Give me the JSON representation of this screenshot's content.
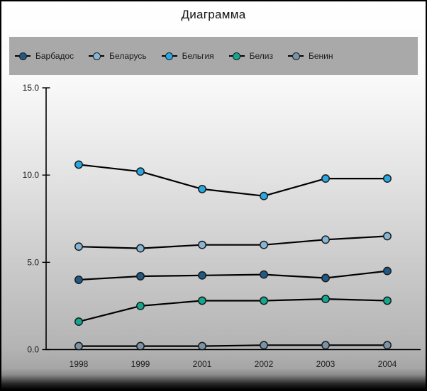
{
  "title": "Диаграмма",
  "legend": {
    "items": [
      {
        "label": "Барбадос",
        "color": "#1f5a87"
      },
      {
        "label": "Беларусь",
        "color": "#85b6d6"
      },
      {
        "label": "Бельгия",
        "color": "#29a9e1"
      },
      {
        "label": "Белиз",
        "color": "#12a88f"
      },
      {
        "label": "Бенин",
        "color": "#7b93a6"
      }
    ]
  },
  "chart_data": {
    "type": "line",
    "title": "Диаграмма",
    "categories": [
      "1998",
      "1999",
      "2001",
      "2002",
      "2003",
      "2004"
    ],
    "series": [
      {
        "name": "Барбадос",
        "color": "#1f5a87",
        "values": [
          4.0,
          4.2,
          4.25,
          4.3,
          4.1,
          4.5
        ]
      },
      {
        "name": "Беларусь",
        "color": "#85b6d6",
        "values": [
          5.9,
          5.8,
          6.0,
          6.0,
          6.3,
          6.5
        ]
      },
      {
        "name": "Бельгия",
        "color": "#29a9e1",
        "values": [
          10.6,
          10.2,
          9.2,
          8.8,
          9.8,
          9.8
        ]
      },
      {
        "name": "Белиз",
        "color": "#12a88f",
        "values": [
          1.6,
          2.5,
          2.8,
          2.8,
          2.9,
          2.8
        ]
      },
      {
        "name": "Бенин",
        "color": "#7b93a6",
        "values": [
          0.2,
          0.2,
          0.2,
          0.25,
          0.25,
          0.25
        ]
      }
    ],
    "ylim": [
      0,
      15
    ],
    "yticks": [
      0,
      5,
      10,
      15
    ],
    "ytick_labels": [
      "0.0",
      "5.0",
      "10.0",
      "15.0"
    ],
    "xlabel": "",
    "ylabel": "",
    "grid": false,
    "legend_position": "top",
    "line_color": "#000000",
    "marker_outline": "#1b1b1b"
  }
}
